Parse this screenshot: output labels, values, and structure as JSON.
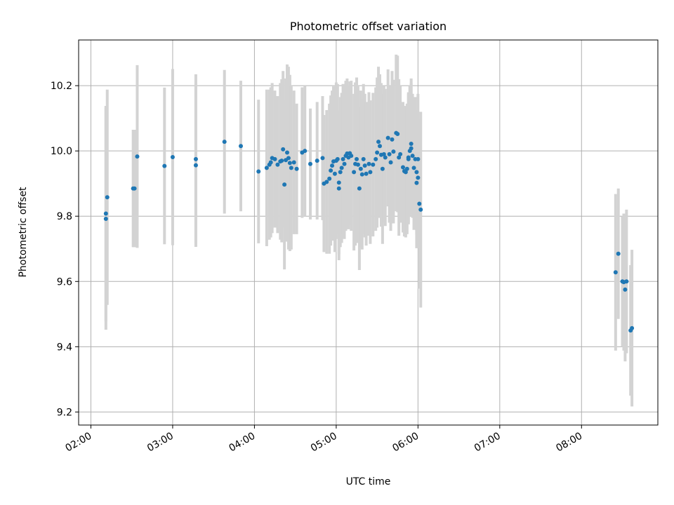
{
  "chart_data": {
    "type": "scatter",
    "title": "Photometric offset variation",
    "xlabel": "UTC time",
    "ylabel": "Photometric offset",
    "x_ticks": [
      "02:00",
      "03:00",
      "04:00",
      "05:00",
      "06:00",
      "07:00",
      "08:00"
    ],
    "y_ticks": [
      "9.2",
      "9.4",
      "9.6",
      "9.8",
      "10.0",
      "10.2"
    ],
    "xlim": [
      "01:51",
      "08:56"
    ],
    "ylim": [
      9.16,
      10.34
    ],
    "grid": true,
    "errorbar_color": "#d3d3d3",
    "marker_color": "#1f77b4",
    "points": [
      {
        "t": "02:11",
        "y": 9.808,
        "err": 0.33
      },
      {
        "t": "02:11",
        "y": 9.792,
        "err": 0.34
      },
      {
        "t": "02:12",
        "y": 9.858,
        "err": 0.33
      },
      {
        "t": "02:31",
        "y": 9.885,
        "err": 0.18
      },
      {
        "t": "02:32",
        "y": 9.885,
        "err": 0.18
      },
      {
        "t": "02:34",
        "y": 9.983,
        "err": 0.28
      },
      {
        "t": "02:54",
        "y": 9.954,
        "err": 0.24
      },
      {
        "t": "03:00",
        "y": 9.981,
        "err": 0.27
      },
      {
        "t": "03:17",
        "y": 9.975,
        "err": 0.26
      },
      {
        "t": "03:17",
        "y": 9.956,
        "err": 0.25
      },
      {
        "t": "03:38",
        "y": 10.028,
        "err": 0.22
      },
      {
        "t": "03:50",
        "y": 10.015,
        "err": 0.2
      },
      {
        "t": "04:03",
        "y": 9.937,
        "err": 0.22
      },
      {
        "t": "04:09",
        "y": 9.948,
        "err": 0.24
      },
      {
        "t": "04:11",
        "y": 9.958,
        "err": 0.23
      },
      {
        "t": "04:12",
        "y": 9.965,
        "err": 0.23
      },
      {
        "t": "04:13",
        "y": 9.978,
        "err": 0.23
      },
      {
        "t": "04:15",
        "y": 9.975,
        "err": 0.21
      },
      {
        "t": "04:17",
        "y": 9.958,
        "err": 0.21
      },
      {
        "t": "04:19",
        "y": 9.968,
        "err": 0.24
      },
      {
        "t": "04:20",
        "y": 9.97,
        "err": 0.25
      },
      {
        "t": "04:21",
        "y": 10.005,
        "err": 0.24
      },
      {
        "t": "04:22",
        "y": 9.897,
        "err": 0.26
      },
      {
        "t": "04:23",
        "y": 9.972,
        "err": 0.25
      },
      {
        "t": "04:24",
        "y": 9.995,
        "err": 0.27
      },
      {
        "t": "04:25",
        "y": 9.978,
        "err": 0.28
      },
      {
        "t": "04:26",
        "y": 9.963,
        "err": 0.27
      },
      {
        "t": "04:27",
        "y": 9.948,
        "err": 0.25
      },
      {
        "t": "04:29",
        "y": 9.965,
        "err": 0.22
      },
      {
        "t": "04:31",
        "y": 9.945,
        "err": 0.2
      },
      {
        "t": "04:35",
        "y": 9.995,
        "err": 0.2
      },
      {
        "t": "04:37",
        "y": 10.0,
        "err": 0.2
      },
      {
        "t": "04:41",
        "y": 9.96,
        "err": 0.17
      },
      {
        "t": "04:46",
        "y": 9.97,
        "err": 0.18
      },
      {
        "t": "04:50",
        "y": 9.978,
        "err": 0.19
      },
      {
        "t": "04:51",
        "y": 9.9,
        "err": 0.21
      },
      {
        "t": "04:53",
        "y": 9.905,
        "err": 0.22
      },
      {
        "t": "04:55",
        "y": 9.915,
        "err": 0.23
      },
      {
        "t": "04:56",
        "y": 9.94,
        "err": 0.23
      },
      {
        "t": "04:57",
        "y": 9.955,
        "err": 0.23
      },
      {
        "t": "04:58",
        "y": 9.968,
        "err": 0.23
      },
      {
        "t": "04:59",
        "y": 9.93,
        "err": 0.24
      },
      {
        "t": "05:00",
        "y": 9.97,
        "err": 0.24
      },
      {
        "t": "05:01",
        "y": 9.975,
        "err": 0.23
      },
      {
        "t": "05:02",
        "y": 9.885,
        "err": 0.22
      },
      {
        "t": "05:02",
        "y": 9.903,
        "err": 0.22
      },
      {
        "t": "05:03",
        "y": 9.935,
        "err": 0.23
      },
      {
        "t": "05:04",
        "y": 9.948,
        "err": 0.23
      },
      {
        "t": "05:05",
        "y": 9.975,
        "err": 0.23
      },
      {
        "t": "05:06",
        "y": 9.96,
        "err": 0.23
      },
      {
        "t": "05:07",
        "y": 9.985,
        "err": 0.23
      },
      {
        "t": "05:08",
        "y": 9.992,
        "err": 0.23
      },
      {
        "t": "05:09",
        "y": 9.98,
        "err": 0.22
      },
      {
        "t": "05:10",
        "y": 9.993,
        "err": 0.22
      },
      {
        "t": "05:11",
        "y": 9.985,
        "err": 0.23
      },
      {
        "t": "05:13",
        "y": 9.935,
        "err": 0.24
      },
      {
        "t": "05:14",
        "y": 9.96,
        "err": 0.25
      },
      {
        "t": "05:15",
        "y": 9.975,
        "err": 0.25
      },
      {
        "t": "05:16",
        "y": 9.958,
        "err": 0.24
      },
      {
        "t": "05:17",
        "y": 9.885,
        "err": 0.25
      },
      {
        "t": "05:18",
        "y": 9.945,
        "err": 0.24
      },
      {
        "t": "05:19",
        "y": 9.928,
        "err": 0.23
      },
      {
        "t": "05:20",
        "y": 9.975,
        "err": 0.23
      },
      {
        "t": "05:21",
        "y": 9.955,
        "err": 0.22
      },
      {
        "t": "05:22",
        "y": 9.93,
        "err": 0.22
      },
      {
        "t": "05:24",
        "y": 9.96,
        "err": 0.22
      },
      {
        "t": "05:25",
        "y": 9.935,
        "err": 0.22
      },
      {
        "t": "05:27",
        "y": 9.958,
        "err": 0.22
      },
      {
        "t": "05:29",
        "y": 9.975,
        "err": 0.22
      },
      {
        "t": "05:30",
        "y": 9.995,
        "err": 0.23
      },
      {
        "t": "05:31",
        "y": 10.028,
        "err": 0.23
      },
      {
        "t": "05:32",
        "y": 10.015,
        "err": 0.22
      },
      {
        "t": "05:33",
        "y": 9.988,
        "err": 0.22
      },
      {
        "t": "05:34",
        "y": 9.945,
        "err": 0.23
      },
      {
        "t": "05:35",
        "y": 9.99,
        "err": 0.21
      },
      {
        "t": "05:36",
        "y": 9.98,
        "err": 0.21
      },
      {
        "t": "05:38",
        "y": 10.04,
        "err": 0.21
      },
      {
        "t": "05:39",
        "y": 9.99,
        "err": 0.21
      },
      {
        "t": "05:40",
        "y": 9.965,
        "err": 0.21
      },
      {
        "t": "05:41",
        "y": 10.035,
        "err": 0.21
      },
      {
        "t": "05:42",
        "y": 9.998,
        "err": 0.22
      },
      {
        "t": "05:44",
        "y": 10.055,
        "err": 0.24
      },
      {
        "t": "05:45",
        "y": 10.052,
        "err": 0.24
      },
      {
        "t": "05:46",
        "y": 9.98,
        "err": 0.24
      },
      {
        "t": "05:47",
        "y": 9.99,
        "err": 0.21
      },
      {
        "t": "05:49",
        "y": 9.95,
        "err": 0.2
      },
      {
        "t": "05:50",
        "y": 9.938,
        "err": 0.2
      },
      {
        "t": "05:51",
        "y": 9.935,
        "err": 0.2
      },
      {
        "t": "05:52",
        "y": 9.945,
        "err": 0.2
      },
      {
        "t": "05:53",
        "y": 9.98,
        "err": 0.2
      },
      {
        "t": "05:53",
        "y": 9.975,
        "err": 0.2
      },
      {
        "t": "05:54",
        "y": 10.0,
        "err": 0.2
      },
      {
        "t": "05:55",
        "y": 10.022,
        "err": 0.2
      },
      {
        "t": "05:55",
        "y": 10.008,
        "err": 0.2
      },
      {
        "t": "05:56",
        "y": 9.985,
        "err": 0.19
      },
      {
        "t": "05:57",
        "y": 9.948,
        "err": 0.19
      },
      {
        "t": "05:58",
        "y": 9.975,
        "err": 0.19
      },
      {
        "t": "05:59",
        "y": 9.935,
        "err": 0.19
      },
      {
        "t": "05:59",
        "y": 9.902,
        "err": 0.2
      },
      {
        "t": "06:00",
        "y": 9.918,
        "err": 0.2
      },
      {
        "t": "06:00",
        "y": 9.975,
        "err": 0.2
      },
      {
        "t": "06:01",
        "y": 9.838,
        "err": 0.26
      },
      {
        "t": "06:02",
        "y": 9.82,
        "err": 0.3
      },
      {
        "t": "08:25",
        "y": 9.628,
        "err": 0.24
      },
      {
        "t": "08:27",
        "y": 9.685,
        "err": 0.2
      },
      {
        "t": "08:30",
        "y": 9.6,
        "err": 0.2
      },
      {
        "t": "08:31",
        "y": 9.598,
        "err": 0.21
      },
      {
        "t": "08:32",
        "y": 9.575,
        "err": 0.22
      },
      {
        "t": "08:33",
        "y": 9.6,
        "err": 0.22
      },
      {
        "t": "08:36",
        "y": 9.45,
        "err": 0.2
      },
      {
        "t": "08:37",
        "y": 9.457,
        "err": 0.24
      }
    ]
  }
}
